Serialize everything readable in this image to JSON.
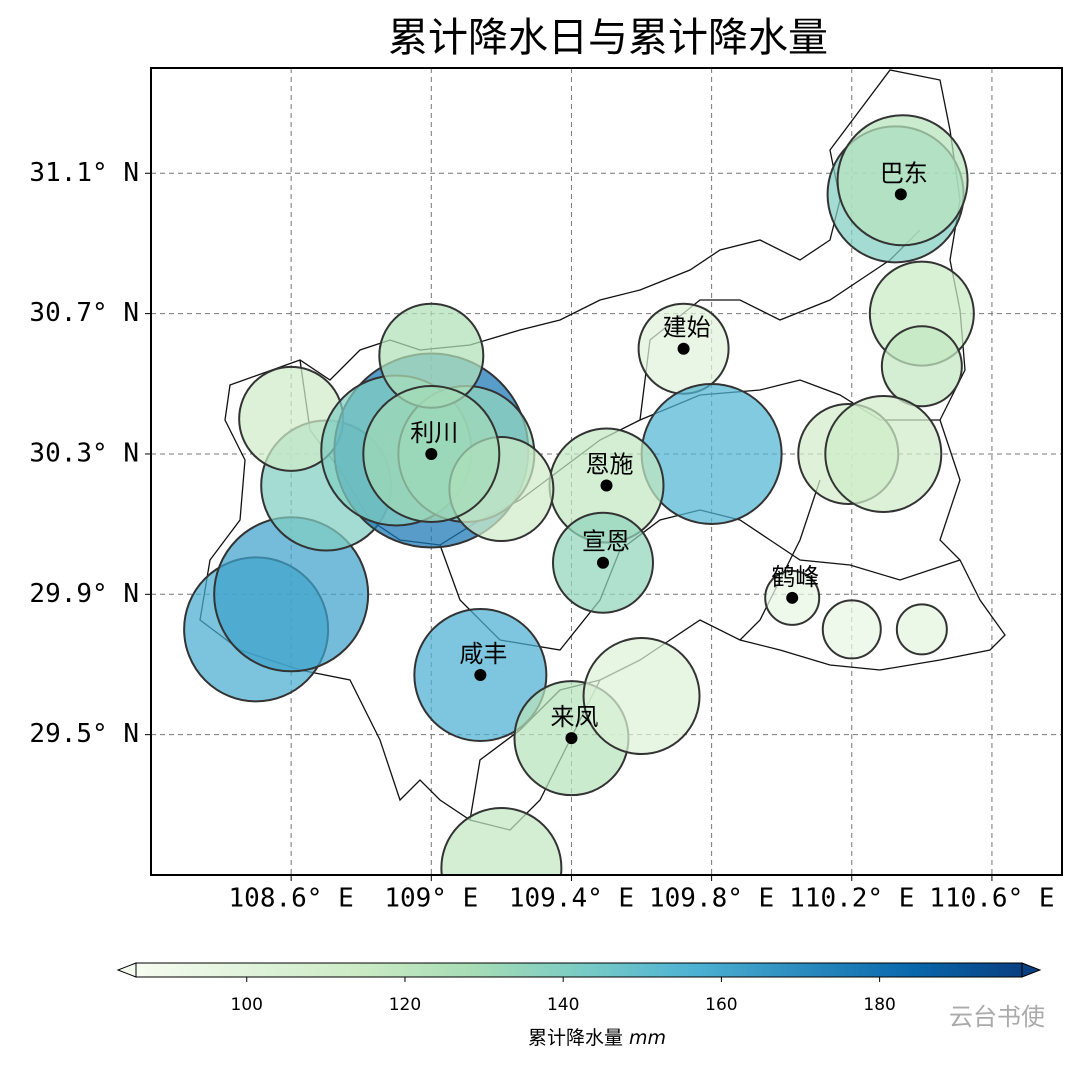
{
  "chart_data": {
    "type": "bubble_map",
    "title": "累计降水日与累计降水量",
    "xlim": [
      108.2,
      110.8
    ],
    "ylim": [
      29.1,
      31.4
    ],
    "xticks": [
      {
        "value": 108.6,
        "label": "108.6° E"
      },
      {
        "value": 109.0,
        "label": "109° E"
      },
      {
        "value": 109.4,
        "label": "109.4° E"
      },
      {
        "value": 109.8,
        "label": "109.8° E"
      },
      {
        "value": 110.2,
        "label": "110.2° E"
      },
      {
        "value": 110.6,
        "label": "110.6° E"
      }
    ],
    "yticks": [
      {
        "value": 31.1,
        "label": "31.1° N"
      },
      {
        "value": 30.7,
        "label": "30.7° N"
      },
      {
        "value": 30.3,
        "label": "30.3° N"
      },
      {
        "value": 29.9,
        "label": "29.9° N"
      },
      {
        "value": 29.5,
        "label": "29.5° N"
      }
    ],
    "grid": true,
    "x": [
      110.325,
      110.345,
      110.4,
      110.4,
      110.19,
      110.29,
      109.72,
      109.8,
      109.5,
      109.49,
      110.03,
      110.2,
      110.4,
      109.14,
      109.4,
      109.6,
      109.2,
      108.5,
      108.6,
      108.7,
      108.6,
      109.0,
      108.9,
      109.1,
      109.0,
      109.2,
      109.0
    ],
    "y": [
      31.04,
      31.08,
      30.7,
      30.55,
      30.3,
      30.3,
      30.6,
      30.3,
      30.21,
      29.99,
      29.89,
      29.8,
      29.8,
      29.67,
      29.49,
      29.61,
      29.12,
      29.8,
      29.9,
      30.21,
      30.4,
      30.31,
      30.31,
      30.3,
      30.58,
      30.2,
      30.3
    ],
    "sizes": [
      68,
      65,
      52,
      40,
      50,
      58,
      45,
      70,
      57,
      50,
      27,
      29,
      25,
      66,
      57,
      58,
      60,
      72,
      77,
      65,
      52,
      97,
      75,
      68,
      52,
      52,
      68
    ],
    "values": [
      140,
      122,
      115,
      118,
      110,
      112,
      100,
      155,
      118,
      135,
      95,
      95,
      98,
      157,
      122,
      102,
      118,
      158,
      162,
      140,
      112,
      178,
      140,
      135,
      125,
      112,
      130
    ],
    "colormap": [
      "#f7fcf0",
      "#e0f3db",
      "#ccebc5",
      "#a8ddb5",
      "#7bccc4",
      "#4eb3d3",
      "#2b8cbe",
      "#0868ac",
      "#084081"
    ],
    "clim": [
      86,
      198
    ],
    "stations": {
      "names": [
        "巴东",
        "建始",
        "利川",
        "恩施",
        "宣恩",
        "鹤峰",
        "咸丰",
        "来凤"
      ],
      "x": [
        110.34,
        109.72,
        109.0,
        109.5,
        109.49,
        110.03,
        109.14,
        109.4
      ],
      "y": [
        31.04,
        30.6,
        30.3,
        30.21,
        29.99,
        29.89,
        29.67,
        29.49
      ]
    },
    "colorbar_ticks": [
      100,
      120,
      140,
      160,
      180
    ],
    "colorbar_label": "累计降水量",
    "colorbar_unit": "mm",
    "watermark": "云台书使"
  }
}
